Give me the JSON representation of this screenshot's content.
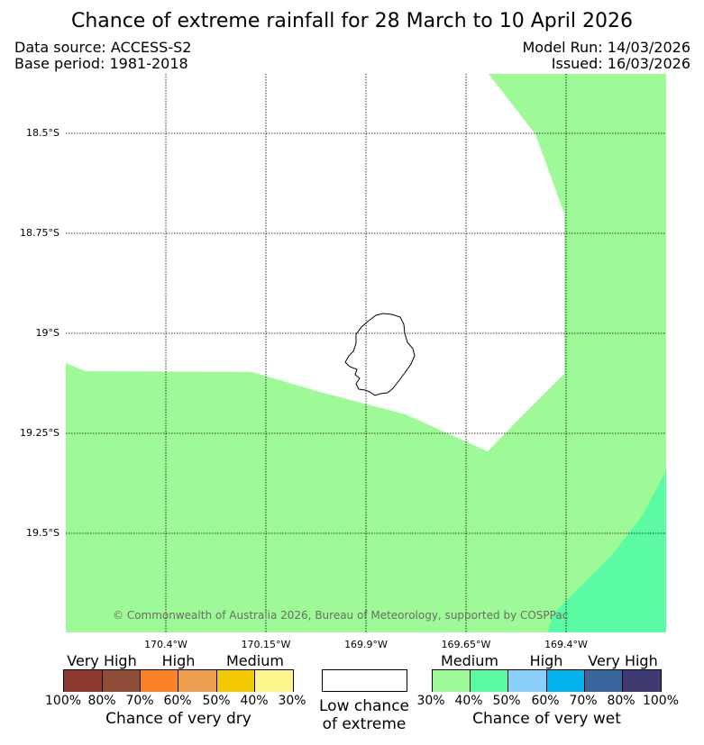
{
  "title": "Chance of extreme rainfall for 28 March to 10 April 2026",
  "data_source": "Data source: ACCESS-S2",
  "base_period": "Base period: 1981-2018",
  "model_run": "Model Run: 14/03/2026",
  "issued": "Issued: 16/03/2026",
  "map": {
    "island": "Niue",
    "lat_labels": [
      "18.5°S",
      "18.75°S",
      "19°S",
      "19.25°S",
      "19.5°S"
    ],
    "lon_labels": [
      "170.4°W",
      "170.15°W",
      "169.9°W",
      "169.65°W",
      "169.4°W"
    ],
    "copyright": "© Commonwealth of Australia 2026, Bureau of Meteorology, supported by COSPPac",
    "colors": {
      "medium_wet": "#9efa96",
      "moderate_wet": "#5afba2",
      "coast": "#000000"
    }
  },
  "legend": {
    "dry_categories": [
      "Very High",
      "High",
      "Medium"
    ],
    "dry_pcts": [
      "100%",
      "80%",
      "70%",
      "60%",
      "50%",
      "40%",
      "30%"
    ],
    "dry_colors": [
      "#8c3a2e",
      "#8f4d37",
      "#fb8226",
      "#ec9d4e",
      "#f2c903",
      "#fdf48b"
    ],
    "dry_caption": "Chance of very dry",
    "low_caption_1": "Low chance",
    "low_caption_2": "of extreme",
    "wet_categories": [
      "Medium",
      "High",
      "Very High"
    ],
    "wet_pcts": [
      "30%",
      "40%",
      "50%",
      "60%",
      "70%",
      "80%",
      "100%"
    ],
    "wet_colors": [
      "#9efa96",
      "#5afba2",
      "#89cffa",
      "#03b2ed",
      "#38659b",
      "#3e3b73"
    ],
    "wet_caption": "Chance of very wet"
  }
}
